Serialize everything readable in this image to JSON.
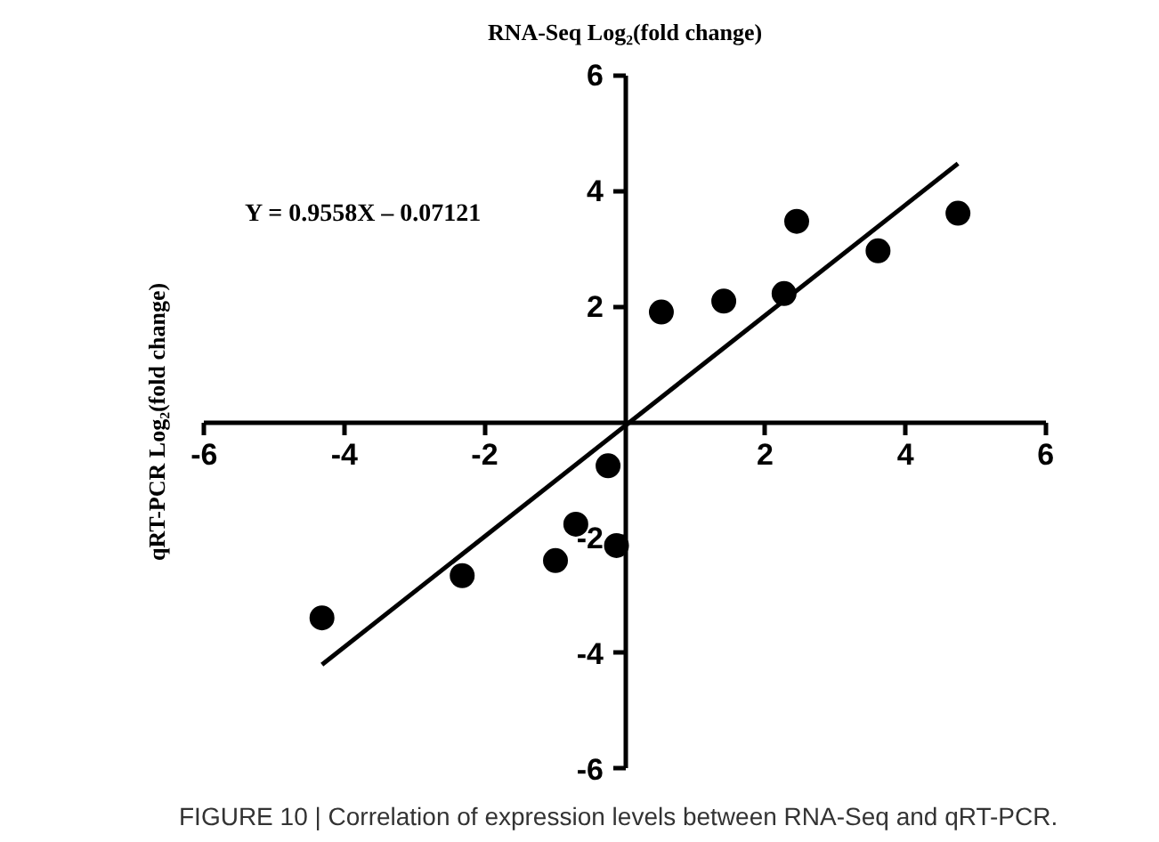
{
  "chart_data": {
    "type": "scatter",
    "title": "RNA-Seq Log₂(fold change)",
    "ylabel": "qRT-PCR Log₂(fold change)",
    "annotations": [
      "Y = 0.9558X – 0.07121",
      "FIGURE 10 | Correlation of expression levels between RNA-Seq and qRT-PCR."
    ],
    "xlim": [
      -6,
      6
    ],
    "ylim": [
      -6,
      6
    ],
    "xticks": [
      -6,
      -4,
      -2,
      2,
      4,
      6
    ],
    "yticks": [
      -6,
      -4,
      -2,
      2,
      4,
      6
    ],
    "grid": false,
    "series": [
      {
        "color": "#000000",
        "marker": "circle",
        "x": [
          -4.32,
          -2.32,
          -0.99,
          -0.7,
          -0.24,
          -0.12,
          0.52,
          1.41,
          2.27,
          2.45,
          3.61,
          4.75
        ],
        "values": [
          -3.39,
          -2.66,
          -2.4,
          -1.77,
          -0.76,
          -2.14,
          1.9,
          2.09,
          2.22,
          3.47,
          2.96,
          3.61
        ]
      },
      {
        "type": "line",
        "color": "#000000",
        "line_style": "solid",
        "x": [
          -4.32,
          4.75
        ],
        "values": [
          -4.2,
          4.47
        ]
      }
    ]
  }
}
